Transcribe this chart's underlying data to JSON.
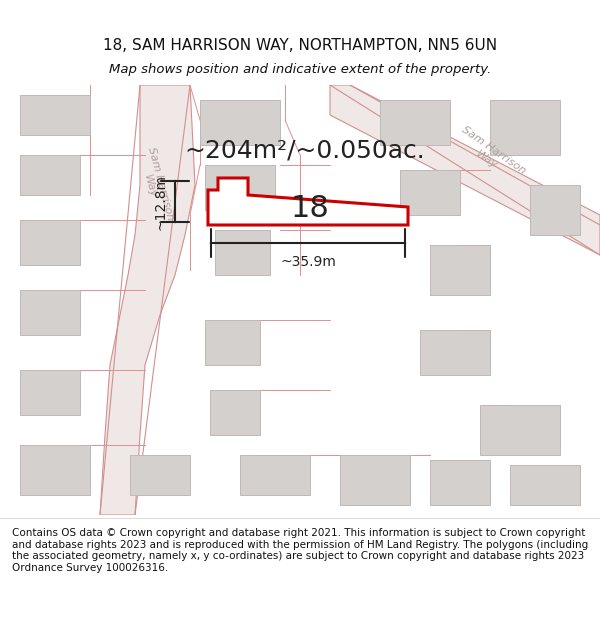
{
  "title": "18, SAM HARRISON WAY, NORTHAMPTON, NN5 6UN",
  "subtitle": "Map shows position and indicative extent of the property.",
  "area_text": "~204m²/~0.050ac.",
  "number_label": "18",
  "dim_horiz": "~35.9m",
  "dim_vert": "~12.8m",
  "footer": "Contains OS data © Crown copyright and database right 2021. This information is subject to Crown copyright and database rights 2023 and is reproduced with the permission of HM Land Registry. The polygons (including the associated geometry, namely x, y co-ordinates) are subject to Crown copyright and database rights 2023 Ordnance Survey 100026316.",
  "bg_color": "#f5f5f5",
  "map_bg": "#f0eeee",
  "road_color": "#e8c8c8",
  "road_fill": "#f5eeee",
  "highlight_color": "#cc0000",
  "building_fill": "#d8d8d8",
  "building_edge": "#bbbbbb",
  "dim_color": "#222222",
  "title_color": "#111111",
  "footer_color": "#111111",
  "street_label_color": "#aaaaaa",
  "title_fontsize": 11,
  "subtitle_fontsize": 9.5,
  "area_fontsize": 18,
  "number_fontsize": 22,
  "dim_fontsize": 10,
  "footer_fontsize": 7.5
}
